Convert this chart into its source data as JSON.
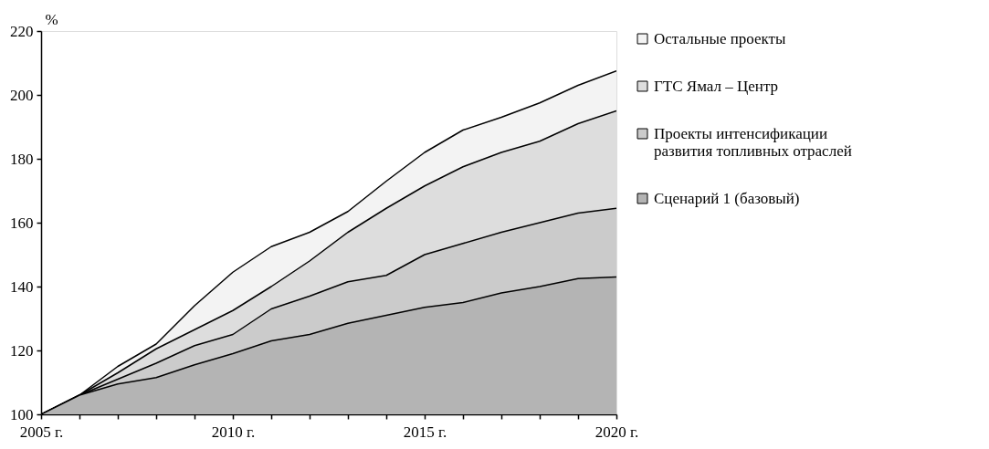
{
  "chart_data": {
    "type": "area",
    "ylabel": "%",
    "x": [
      2005,
      2006,
      2007,
      2008,
      2009,
      2010,
      2011,
      2012,
      2013,
      2014,
      2015,
      2016,
      2017,
      2018,
      2019,
      2020
    ],
    "series": [
      {
        "name": "Сценарий 1 (базовый)",
        "color": "#b4b4b4",
        "values": [
          100,
          106,
          109.5,
          111.5,
          115.5,
          119,
          123,
          125,
          128.5,
          131,
          133.5,
          135,
          138,
          140,
          142.5,
          143
        ]
      },
      {
        "name": "Проекты интенсификации\nразвития топливных отраслей",
        "color": "#cbcbcb",
        "values": [
          100,
          106,
          111,
          116,
          121.5,
          125,
          133,
          137,
          141.5,
          143.5,
          150,
          153.5,
          157,
          160,
          163,
          164.5
        ]
      },
      {
        "name": "ГТС Ямал – Центр",
        "color": "#dddddd",
        "values": [
          100,
          106,
          113,
          120.5,
          126.5,
          132.5,
          140,
          148,
          157,
          164.5,
          171.5,
          177.5,
          182,
          185.5,
          191,
          195
        ]
      },
      {
        "name": "Остальные проекты",
        "color": "#f3f3f3",
        "values": [
          100,
          106,
          115,
          122,
          134,
          144.5,
          152.5,
          157,
          163.5,
          173,
          182,
          189,
          193,
          197.5,
          203,
          207.5
        ]
      }
    ],
    "xlim": [
      2005,
      2020
    ],
    "xticks": [
      {
        "value": 2005,
        "label": "2005 г."
      },
      {
        "value": 2006,
        "label": null
      },
      {
        "value": 2007,
        "label": null
      },
      {
        "value": 2008,
        "label": null
      },
      {
        "value": 2009,
        "label": null
      },
      {
        "value": 2010,
        "label": "2010 г."
      },
      {
        "value": 2011,
        "label": null
      },
      {
        "value": 2012,
        "label": null
      },
      {
        "value": 2013,
        "label": null
      },
      {
        "value": 2014,
        "label": null
      },
      {
        "value": 2015,
        "label": "2015 г."
      },
      {
        "value": 2016,
        "label": null
      },
      {
        "value": 2017,
        "label": null
      },
      {
        "value": 2018,
        "label": null
      },
      {
        "value": 2019,
        "label": null
      },
      {
        "value": 2020,
        "label": "2020 г."
      }
    ],
    "ylim": [
      100,
      220
    ],
    "yticks": [
      100,
      120,
      140,
      160,
      180,
      200,
      220
    ],
    "grid": false,
    "legend": "right",
    "line_style": "solid"
  }
}
